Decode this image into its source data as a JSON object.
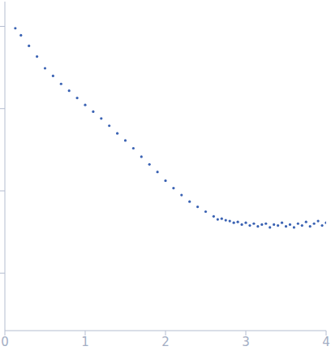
{
  "chart_data": {
    "type": "scatter",
    "x": [
      0.13,
      0.2,
      0.3,
      0.4,
      0.5,
      0.6,
      0.7,
      0.8,
      0.9,
      1.0,
      1.1,
      1.2,
      1.3,
      1.4,
      1.5,
      1.6,
      1.7,
      1.8,
      1.9,
      2.0,
      2.1,
      2.2,
      2.3,
      2.4,
      2.5,
      2.6,
      2.65,
      2.7,
      2.75,
      2.8,
      2.85,
      2.9,
      2.95,
      3.0,
      3.05,
      3.1,
      3.15,
      3.2,
      3.25,
      3.3,
      3.35,
      3.4,
      3.45,
      3.5,
      3.55,
      3.6,
      3.65,
      3.7,
      3.75,
      3.8,
      3.85,
      3.9,
      3.95,
      4.0
    ],
    "values": [
      0.95,
      0.78,
      0.58,
      0.43,
      0.31,
      0.25,
      0.2,
      0.165,
      0.135,
      0.111,
      0.092,
      0.076,
      0.062,
      0.05,
      0.041,
      0.033,
      0.026,
      0.021,
      0.017,
      0.0133,
      0.0108,
      0.0089,
      0.0074,
      0.0064,
      0.0056,
      0.0049,
      0.0045,
      0.0046,
      0.0044,
      0.0043,
      0.0041,
      0.0042,
      0.0039,
      0.0041,
      0.0038,
      0.004,
      0.0037,
      0.0039,
      0.004,
      0.0036,
      0.0039,
      0.0038,
      0.0041,
      0.0037,
      0.0039,
      0.0036,
      0.004,
      0.0038,
      0.0042,
      0.0037,
      0.004,
      0.0043,
      0.0038,
      0.0041
    ],
    "color": "#3a62b3",
    "marker": "circle",
    "xlim": [
      0,
      4
    ],
    "xticks": [
      0,
      1,
      2,
      3,
      4
    ],
    "ylim": [
      0.0002,
      2
    ],
    "yticks": [
      0.001,
      0.01,
      0.1,
      1
    ],
    "log": "y",
    "tick_labels": "x"
  }
}
